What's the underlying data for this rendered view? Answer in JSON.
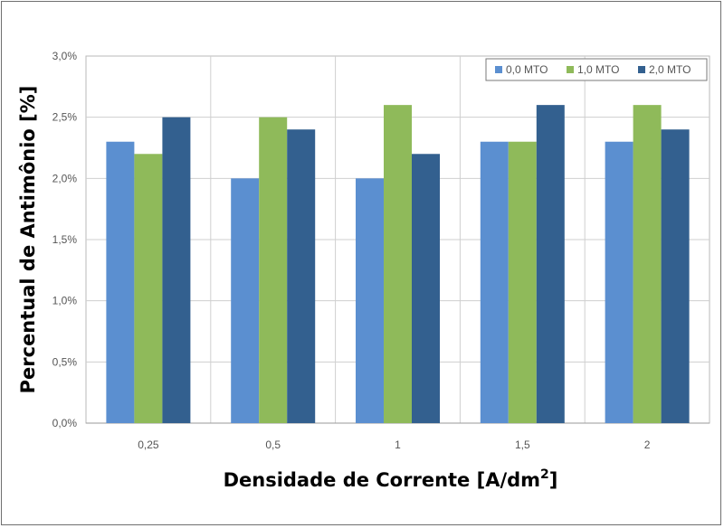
{
  "chart_data": {
    "type": "bar",
    "categories": [
      "0,25",
      "0,5",
      "1",
      "1,5",
      "2"
    ],
    "series": [
      {
        "name": "0,0 MTO",
        "color": "#5b8fd0",
        "values": [
          2.3,
          2.0,
          2.0,
          2.3,
          2.3
        ]
      },
      {
        "name": "1,0 MTO",
        "color": "#8fba5a",
        "values": [
          2.2,
          2.5,
          2.6,
          2.3,
          2.6
        ]
      },
      {
        "name": "2,0 MTO",
        "color": "#33608f",
        "values": [
          2.5,
          2.4,
          2.2,
          2.6,
          2.4
        ]
      }
    ],
    "ylim": [
      0,
      3.0
    ],
    "yticks": [
      "0,0%",
      "0,5%",
      "1,0%",
      "1,5%",
      "2,0%",
      "2,5%",
      "3,0%"
    ],
    "ylabel": "Percentual de Antimônio [%]",
    "xlabel_main": "Densidade de Corrente [A/dm",
    "xlabel_sup": "2",
    "xlabel_end": "]",
    "grid": true,
    "legend_position": "top-right"
  }
}
